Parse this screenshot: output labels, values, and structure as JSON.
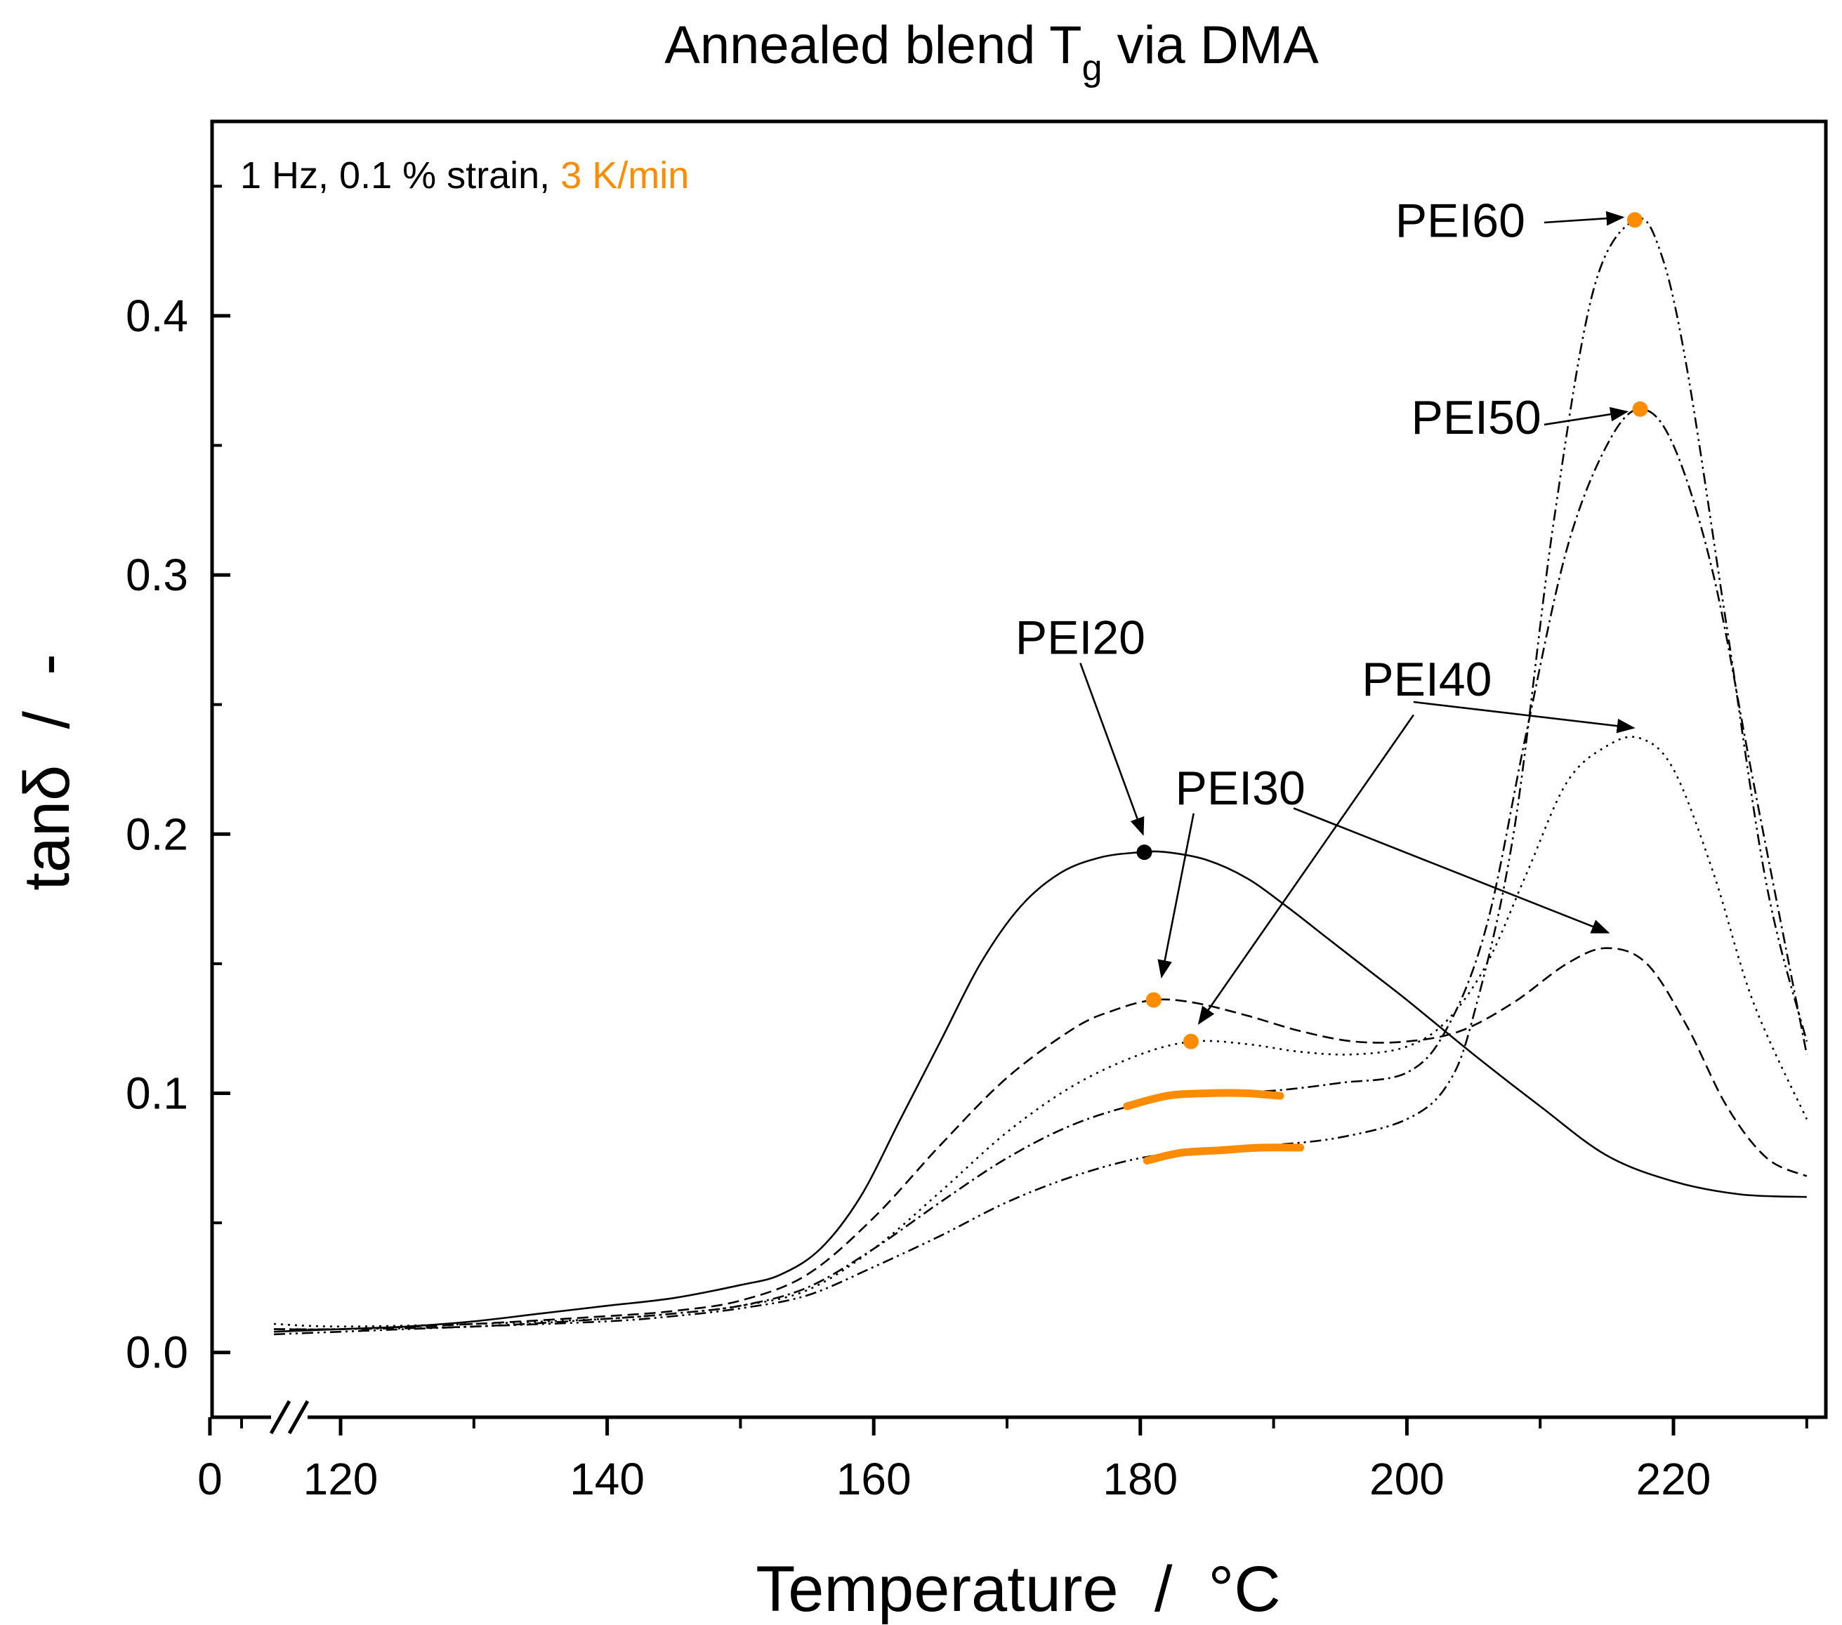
{
  "chart_data": {
    "type": "line",
    "title": "Annealed blend T",
    "title_subscript": "g",
    "title_suffix": " via DMA",
    "xlabel": "Temperature  /  °C",
    "ylabel": "tanδ  /  -",
    "condition_text": "1 Hz, 0.1 % strain, ",
    "condition_highlight": "3 K/min",
    "xlim": [
      110,
      230
    ],
    "ylim": [
      -0.025,
      0.475
    ],
    "axis_break": true,
    "x_ticks": [
      {
        "value": 0,
        "label": "0"
      },
      {
        "value": 120,
        "label": "120"
      },
      {
        "value": 140,
        "label": "140"
      },
      {
        "value": 160,
        "label": "160"
      },
      {
        "value": 180,
        "label": "180"
      },
      {
        "value": 200,
        "label": "200"
      },
      {
        "value": 220,
        "label": "220"
      }
    ],
    "y_ticks": [
      {
        "value": 0.0,
        "label": "0.0"
      },
      {
        "value": 0.1,
        "label": "0.1"
      },
      {
        "value": 0.2,
        "label": "0.2"
      },
      {
        "value": 0.3,
        "label": "0.3"
      },
      {
        "value": 0.4,
        "label": "0.4"
      }
    ],
    "series": [
      {
        "name": "PEI20",
        "style": "solid",
        "peak": [
          180.3,
          0.193
        ],
        "peak_color": "#000000",
        "x": [
          115,
          120,
          125,
          130,
          135,
          140,
          145,
          150,
          153,
          156,
          159,
          162,
          165,
          168,
          171,
          174,
          177,
          180,
          182,
          185,
          188,
          191,
          194,
          197,
          200,
          205,
          210,
          215,
          220,
          225,
          230
        ],
        "y": [
          0.008,
          0.009,
          0.01,
          0.012,
          0.015,
          0.018,
          0.021,
          0.026,
          0.03,
          0.04,
          0.06,
          0.09,
          0.12,
          0.15,
          0.172,
          0.185,
          0.191,
          0.193,
          0.193,
          0.19,
          0.183,
          0.172,
          0.16,
          0.148,
          0.136,
          0.115,
          0.095,
          0.076,
          0.066,
          0.061,
          0.06
        ]
      },
      {
        "name": "PEI30",
        "style": "dashed",
        "peak": [
          181.0,
          0.136
        ],
        "peak_color": "#ff8c00",
        "x": [
          115,
          120,
          130,
          140,
          145,
          150,
          155,
          160,
          165,
          170,
          175,
          178,
          181,
          184,
          188,
          192,
          196,
          200,
          204,
          208,
          212,
          215,
          218,
          221,
          224,
          227,
          230
        ],
        "y": [
          0.009,
          0.009,
          0.011,
          0.014,
          0.016,
          0.02,
          0.03,
          0.052,
          0.08,
          0.106,
          0.125,
          0.132,
          0.136,
          0.135,
          0.13,
          0.124,
          0.12,
          0.12,
          0.124,
          0.135,
          0.15,
          0.156,
          0.15,
          0.126,
          0.095,
          0.075,
          0.068
        ]
      },
      {
        "name": "PEI40",
        "style": "dotted",
        "peak": [
          183.8,
          0.12
        ],
        "peak_color": "#ff8c00",
        "x": [
          115,
          120,
          130,
          140,
          145,
          150,
          155,
          160,
          165,
          170,
          175,
          180,
          184,
          188,
          192,
          196,
          200,
          203,
          206,
          209,
          212,
          215,
          217.5,
          220,
          223,
          226,
          230
        ],
        "y": [
          0.011,
          0.01,
          0.011,
          0.013,
          0.015,
          0.018,
          0.024,
          0.04,
          0.062,
          0.085,
          0.103,
          0.115,
          0.12,
          0.119,
          0.116,
          0.115,
          0.118,
          0.128,
          0.15,
          0.185,
          0.22,
          0.234,
          0.237,
          0.225,
          0.185,
          0.135,
          0.09
        ]
      },
      {
        "name": "PEI50",
        "style": "dashdot",
        "peak": [
          217.5,
          0.364
        ],
        "peak_color": "#ff8c00",
        "x": [
          115,
          120,
          130,
          140,
          145,
          150,
          155,
          160,
          165,
          170,
          175,
          180,
          185,
          190,
          195,
          200,
          203,
          206,
          209,
          212,
          215,
          217.5,
          220,
          223,
          226,
          230
        ],
        "y": [
          0.009,
          0.009,
          0.01,
          0.013,
          0.015,
          0.018,
          0.025,
          0.04,
          0.058,
          0.075,
          0.088,
          0.096,
          0.1,
          0.101,
          0.104,
          0.108,
          0.125,
          0.165,
          0.24,
          0.31,
          0.35,
          0.364,
          0.35,
          0.3,
          0.22,
          0.115
        ]
      },
      {
        "name": "PEI60",
        "style": "dashdotdot",
        "peak": [
          217.1,
          0.437
        ],
        "peak_color": "#ff8c00",
        "x": [
          115,
          120,
          130,
          140,
          145,
          150,
          155,
          160,
          165,
          170,
          175,
          180,
          185,
          190,
          195,
          200,
          203,
          205,
          208,
          211,
          214,
          217.1,
          219,
          221,
          224,
          227,
          230
        ],
        "y": [
          0.007,
          0.008,
          0.01,
          0.012,
          0.014,
          0.017,
          0.022,
          0.033,
          0.045,
          0.058,
          0.068,
          0.075,
          0.078,
          0.08,
          0.083,
          0.09,
          0.103,
          0.13,
          0.2,
          0.32,
          0.41,
          0.437,
          0.425,
          0.38,
          0.28,
          0.18,
          0.12
        ]
      }
    ],
    "highlight_segments": [
      {
        "x": [
          179,
          182,
          185,
          188,
          190.5
        ],
        "y": [
          0.095,
          0.099,
          0.1,
          0.1,
          0.099
        ]
      },
      {
        "x": [
          180.5,
          183,
          186,
          189,
          192
        ],
        "y": [
          0.074,
          0.077,
          0.078,
          0.079,
          0.079
        ]
      }
    ],
    "annotations": [
      {
        "label": "PEI20",
        "text_at": [
          175.5,
          0.276
        ],
        "arrow_from": [
          175.5,
          0.266
        ],
        "arrow_to": [
          180.2,
          0.2
        ]
      },
      {
        "label": "PEI30",
        "text_at": [
          187.5,
          0.218
        ],
        "arrow_from": [
          184.0,
          0.208
        ],
        "arrow_to": [
          181.6,
          0.145
        ]
      },
      {
        "label": "PEI40",
        "text_at": [
          201.5,
          0.26
        ],
        "arrow_from": [
          200.5,
          0.246
        ],
        "arrow_to": [
          184.4,
          0.127
        ]
      },
      {
        "label": "PEI30",
        "text_at": [
          187.5,
          0.218
        ],
        "arrow_from": [
          191.5,
          0.21
        ],
        "arrow_to": [
          215.1,
          0.162
        ],
        "ghost": true
      },
      {
        "label": "PEI40",
        "text_at": [
          201.5,
          0.26
        ],
        "arrow_from": [
          200.5,
          0.251
        ],
        "arrow_to": [
          217.0,
          0.241
        ],
        "ghost": true
      },
      {
        "label": "PEI50",
        "text_at": [
          205.2,
          0.361
        ],
        "arrow_from": [
          210.3,
          0.358
        ],
        "arrow_to": [
          216.5,
          0.363
        ]
      },
      {
        "label": "PEI60",
        "text_at": [
          204.0,
          0.437
        ],
        "arrow_from": [
          210.3,
          0.436
        ],
        "arrow_to": [
          216.2,
          0.438
        ]
      }
    ]
  }
}
